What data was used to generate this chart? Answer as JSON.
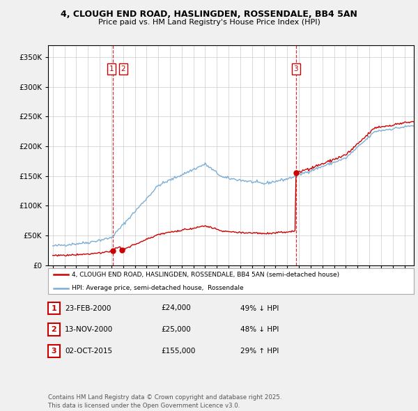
{
  "title_line1": "4, CLOUGH END ROAD, HASLINGDEN, ROSSENDALE, BB4 5AN",
  "title_line2": "Price paid vs. HM Land Registry's House Price Index (HPI)",
  "ylim": [
    0,
    370000
  ],
  "yticks": [
    0,
    50000,
    100000,
    150000,
    200000,
    250000,
    300000,
    350000
  ],
  "xlim_start": 1994.6,
  "xlim_end": 2025.8,
  "sale_dates": [
    2000.14,
    2000.87,
    2015.75
  ],
  "sale_prices": [
    24000,
    25000,
    155000
  ],
  "vline_dates": [
    2000.14,
    2015.75
  ],
  "legend_entries": [
    "4, CLOUGH END ROAD, HASLINGDEN, ROSSENDALE, BB4 5AN (semi-detached house)",
    "HPI: Average price, semi-detached house,  Rossendale"
  ],
  "table_rows": [
    [
      "1",
      "23-FEB-2000",
      "£24,000",
      "49% ↓ HPI"
    ],
    [
      "2",
      "13-NOV-2000",
      "£25,000",
      "48% ↓ HPI"
    ],
    [
      "3",
      "02-OCT-2015",
      "£155,000",
      "29% ↑ HPI"
    ]
  ],
  "footnote": "Contains HM Land Registry data © Crown copyright and database right 2025.\nThis data is licensed under the Open Government Licence v3.0.",
  "bg_color": "#f0f0f0",
  "plot_bg_color": "#ffffff",
  "grid_color": "#cccccc",
  "red_color": "#cc0000",
  "blue_color": "#7aaed6"
}
